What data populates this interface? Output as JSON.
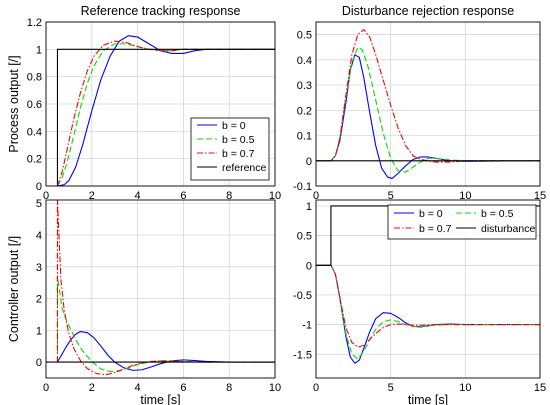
{
  "colors": {
    "b0": "#0000ff",
    "b05": "#00dd00",
    "b07": "#ff0000",
    "ref": "#000000"
  },
  "chart_data": [
    {
      "id": "ref-track-output",
      "type": "line",
      "title": "Reference tracking response",
      "xlabel": "",
      "ylabel": "Process output [/]",
      "xlim": [
        0,
        10
      ],
      "ylim": [
        0,
        1.2
      ],
      "xticks": [
        "0",
        "2",
        "4",
        "6",
        "8",
        "10"
      ],
      "yticks": [
        "0",
        "0.2",
        "0.4",
        "0.6",
        "0.8",
        "1",
        "1.2"
      ],
      "xtick_values": [
        0,
        2,
        4,
        6,
        8,
        10
      ],
      "ytick_values": [
        0,
        0.2,
        0.4,
        0.6,
        0.8,
        1,
        1.2
      ],
      "grid": true,
      "legend": {
        "position": "lower-right",
        "columns": 1
      },
      "series": [
        {
          "name": "b = 0",
          "color": "#0000ff",
          "dash": "solid",
          "x": [
            0.5,
            0.8,
            1.0,
            1.3,
            1.6,
            2.0,
            2.4,
            2.8,
            3.2,
            3.6,
            4.0,
            4.5,
            5.0,
            5.5,
            6.0,
            6.5,
            7.0,
            8.0,
            9.0,
            10.0
          ],
          "y": [
            0,
            0.01,
            0.04,
            0.14,
            0.3,
            0.55,
            0.78,
            0.95,
            1.06,
            1.1,
            1.09,
            1.04,
            0.99,
            0.97,
            0.97,
            0.99,
            1.0,
            1.0,
            1.0,
            1.0
          ]
        },
        {
          "name": "b = 0.5",
          "color": "#00dd00",
          "dash": "dashed",
          "x": [
            0.5,
            0.7,
            0.9,
            1.2,
            1.5,
            1.8,
            2.1,
            2.5,
            3.0,
            3.5,
            4.0,
            4.5,
            5.0,
            5.5,
            6.0,
            7.0,
            8.0,
            10.0
          ],
          "y": [
            0,
            0.06,
            0.16,
            0.36,
            0.57,
            0.75,
            0.88,
            0.99,
            1.04,
            1.04,
            1.02,
            1.0,
            0.99,
            0.99,
            1.0,
            1.0,
            1.0,
            1.0
          ]
        },
        {
          "name": "b = 0.7",
          "color": "#ff0000",
          "dash": "dashdot",
          "x": [
            0.5,
            0.7,
            0.9,
            1.2,
            1.5,
            1.8,
            2.1,
            2.5,
            3.0,
            3.5,
            4.0,
            4.5,
            5.0,
            5.5,
            6.0,
            7.0,
            8.0,
            10.0
          ],
          "y": [
            0,
            0.1,
            0.25,
            0.48,
            0.68,
            0.84,
            0.95,
            1.03,
            1.06,
            1.05,
            1.02,
            1.0,
            0.99,
            0.99,
            1.0,
            1.0,
            1.0,
            1.0
          ]
        },
        {
          "name": "reference",
          "color": "#000000",
          "dash": "solid",
          "x": [
            0,
            0.5,
            0.5,
            10
          ],
          "y": [
            0,
            0,
            1,
            1
          ]
        }
      ]
    },
    {
      "id": "dist-rej-output",
      "type": "line",
      "title": "Disturbance rejection response",
      "xlabel": "",
      "ylabel": "",
      "xlim": [
        0,
        15
      ],
      "ylim": [
        -0.1,
        0.55
      ],
      "xticks": [
        "0",
        "5",
        "10",
        "15"
      ],
      "yticks": [
        "-0.1",
        "0",
        "0.1",
        "0.2",
        "0.3",
        "0.4",
        "0.5"
      ],
      "xtick_values": [
        0,
        5,
        10,
        15
      ],
      "ytick_values": [
        -0.1,
        0,
        0.1,
        0.2,
        0.3,
        0.4,
        0.5
      ],
      "grid": true,
      "series": [
        {
          "name": "b = 0",
          "color": "#0000ff",
          "dash": "solid",
          "x": [
            0,
            1,
            1.3,
            1.6,
            2.0,
            2.3,
            2.6,
            2.9,
            3.2,
            3.6,
            4.0,
            4.4,
            4.8,
            5.1,
            5.5,
            6.0,
            6.5,
            7.0,
            7.5,
            8.0,
            8.5,
            9.0,
            10.0,
            15.0
          ],
          "y": [
            0,
            0,
            0.02,
            0.08,
            0.23,
            0.36,
            0.42,
            0.41,
            0.33,
            0.19,
            0.06,
            -0.03,
            -0.065,
            -0.07,
            -0.05,
            -0.02,
            0.005,
            0.015,
            0.015,
            0.01,
            0.005,
            0,
            -0.002,
            0
          ]
        },
        {
          "name": "b = 0.5",
          "color": "#00dd00",
          "dash": "dashed",
          "x": [
            0,
            1,
            1.3,
            1.6,
            2.0,
            2.4,
            2.8,
            3.1,
            3.5,
            4.0,
            4.5,
            5.0,
            5.5,
            6.0,
            6.5,
            7.0,
            7.5,
            8.0,
            9.0,
            10.0,
            15.0
          ],
          "y": [
            0,
            0,
            0.02,
            0.09,
            0.25,
            0.39,
            0.45,
            0.44,
            0.37,
            0.24,
            0.11,
            0.01,
            -0.04,
            -0.045,
            -0.025,
            -0.005,
            0.01,
            0.01,
            0.003,
            0,
            0
          ]
        },
        {
          "name": "b = 0.7",
          "color": "#ff0000",
          "dash": "dashdot",
          "x": [
            0,
            1,
            1.3,
            1.6,
            2.0,
            2.4,
            2.8,
            3.2,
            3.6,
            4.0,
            4.5,
            5.0,
            5.5,
            6.0,
            6.5,
            7.0,
            7.5,
            8.0,
            9.0,
            10.0,
            15.0
          ],
          "y": [
            0,
            0,
            0.02,
            0.09,
            0.26,
            0.42,
            0.5,
            0.52,
            0.49,
            0.42,
            0.32,
            0.22,
            0.13,
            0.06,
            0.02,
            0.005,
            0.0,
            -0.005,
            -0.005,
            0,
            0
          ]
        },
        {
          "name": "",
          "color": "#000000",
          "dash": "solid",
          "x": [
            0,
            15
          ],
          "y": [
            0,
            0
          ]
        }
      ]
    },
    {
      "id": "ref-track-control",
      "type": "line",
      "title": "",
      "xlabel": "time [s]",
      "ylabel": "Controller output [/]",
      "xlim": [
        0,
        10
      ],
      "ylim": [
        -0.5,
        5.1
      ],
      "xticks": [
        "0",
        "2",
        "4",
        "6",
        "8",
        "10"
      ],
      "yticks": [
        "0",
        "1",
        "2",
        "3",
        "4",
        "5"
      ],
      "xtick_values": [
        0,
        2,
        4,
        6,
        8,
        10
      ],
      "ytick_values": [
        0,
        1,
        2,
        3,
        4,
        5
      ],
      "grid": true,
      "series": [
        {
          "name": "b = 0",
          "color": "#0000ff",
          "dash": "solid",
          "x": [
            0.5,
            0.7,
            0.9,
            1.1,
            1.3,
            1.5,
            1.8,
            2.1,
            2.4,
            2.7,
            3.0,
            3.4,
            3.8,
            4.2,
            4.6,
            5.0,
            5.5,
            6.0,
            6.5,
            7.0,
            8.0,
            10.0
          ],
          "y": [
            0,
            0.25,
            0.5,
            0.72,
            0.88,
            0.96,
            0.93,
            0.76,
            0.5,
            0.22,
            0.0,
            -0.18,
            -0.26,
            -0.24,
            -0.15,
            -0.05,
            0.04,
            0.07,
            0.05,
            0.02,
            0,
            0
          ]
        },
        {
          "name": "b = 0.5",
          "color": "#00dd00",
          "dash": "dashed",
          "x": [
            0.5,
            0.5,
            0.7,
            0.9,
            1.1,
            1.3,
            1.6,
            2.0,
            2.4,
            2.8,
            3.2,
            3.6,
            4.0,
            4.5,
            5.0,
            5.5,
            6.0,
            7.0,
            8.0,
            10.0
          ],
          "y": [
            0,
            2.7,
            1.7,
            1.3,
            1.0,
            0.7,
            0.35,
            0.02,
            -0.22,
            -0.3,
            -0.27,
            -0.18,
            -0.08,
            0.0,
            0.04,
            0.04,
            0.02,
            0,
            0,
            0
          ]
        },
        {
          "name": "b = 0.7",
          "color": "#ff0000",
          "dash": "dashdot",
          "x": [
            0.5,
            0.5,
            0.65,
            0.8,
            1.0,
            1.2,
            1.5,
            1.8,
            2.2,
            2.6,
            3.0,
            3.4,
            3.8,
            4.2,
            4.6,
            5.0,
            5.5,
            6.0,
            7.0,
            8.0,
            10.0
          ],
          "y": [
            0,
            5.1,
            2.6,
            1.6,
            0.9,
            0.45,
            0.05,
            -0.2,
            -0.36,
            -0.4,
            -0.33,
            -0.22,
            -0.1,
            -0.02,
            0.02,
            0.04,
            0.03,
            0.01,
            0,
            0,
            0
          ]
        },
        {
          "name": "",
          "color": "#000000",
          "dash": "solid",
          "x": [
            0,
            10
          ],
          "y": [
            0,
            0
          ]
        }
      ]
    },
    {
      "id": "dist-rej-control",
      "type": "line",
      "title": "",
      "xlabel": "time [s]",
      "ylabel": "",
      "xlim": [
        0,
        15
      ],
      "ylim": [
        -1.9,
        1.1
      ],
      "xticks": [
        "0",
        "5",
        "10",
        "15"
      ],
      "yticks": [
        "-1.5",
        "-1",
        "-0.5",
        "0",
        "0.5",
        "1"
      ],
      "xtick_values": [
        0,
        5,
        10,
        15
      ],
      "ytick_values": [
        -1.5,
        -1,
        -0.5,
        0,
        0.5,
        1
      ],
      "grid": true,
      "legend": {
        "position": "top-right",
        "columns": 2
      },
      "series": [
        {
          "name": "b = 0",
          "color": "#0000ff",
          "dash": "solid",
          "x": [
            0,
            1,
            1.3,
            1.6,
            2.0,
            2.3,
            2.6,
            2.9,
            3.2,
            3.6,
            4.0,
            4.5,
            5.0,
            5.5,
            6.0,
            6.5,
            7.0,
            7.5,
            8.0,
            9.0,
            10.0,
            12.0,
            15.0
          ],
          "y": [
            0,
            0,
            -0.15,
            -0.55,
            -1.2,
            -1.55,
            -1.65,
            -1.6,
            -1.4,
            -1.12,
            -0.9,
            -0.8,
            -0.81,
            -0.88,
            -0.97,
            -1.03,
            -1.04,
            -1.02,
            -1.0,
            -0.99,
            -1.0,
            -1.0,
            -1.0
          ]
        },
        {
          "name": "b = 0.5",
          "color": "#00dd00",
          "dash": "dashed",
          "x": [
            0,
            1,
            1.3,
            1.6,
            2.0,
            2.4,
            2.8,
            3.2,
            3.6,
            4.0,
            4.5,
            5.0,
            5.5,
            6.0,
            6.5,
            7.0,
            8.0,
            9.0,
            10.0,
            15.0
          ],
          "y": [
            0,
            0,
            -0.15,
            -0.55,
            -1.15,
            -1.5,
            -1.58,
            -1.45,
            -1.25,
            -1.08,
            -0.95,
            -0.92,
            -0.95,
            -1.0,
            -1.03,
            -1.03,
            -1.01,
            -1.0,
            -1.0,
            -1.0
          ]
        },
        {
          "name": "b = 0.7",
          "color": "#ff0000",
          "dash": "dashdot",
          "x": [
            0,
            1,
            1.3,
            1.6,
            2.0,
            2.4,
            2.8,
            3.2,
            3.6,
            4.0,
            4.5,
            5.0,
            5.5,
            6.0,
            6.5,
            7.0,
            8.0,
            9.0,
            10.0,
            15.0
          ],
          "y": [
            0,
            0,
            -0.15,
            -0.55,
            -1.05,
            -1.3,
            -1.38,
            -1.35,
            -1.25,
            -1.15,
            -1.05,
            -1.0,
            -0.99,
            -1.0,
            -1.01,
            -1.01,
            -1.0,
            -1.0,
            -1.0,
            -1.0
          ]
        },
        {
          "name": "disturbance",
          "color": "#000000",
          "dash": "solid",
          "x": [
            0,
            1,
            1,
            15
          ],
          "y": [
            0,
            0,
            1,
            1
          ]
        }
      ]
    }
  ]
}
